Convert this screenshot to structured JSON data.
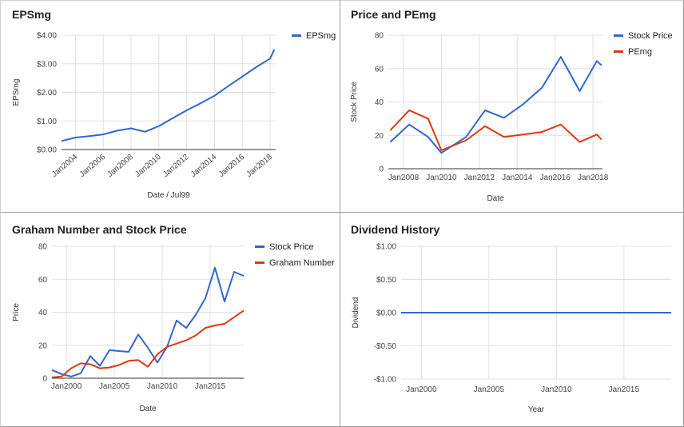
{
  "colors": {
    "blue": "#3366cc",
    "red": "#dc3912",
    "grid": "#e0e0e0"
  },
  "chart_data": [
    {
      "type": "line",
      "title": "EPSmg",
      "xlabel": "Date / Jul99",
      "ylabel": "EPSmg",
      "xlim": [
        2003.0,
        2018.4
      ],
      "ylim": [
        0,
        4
      ],
      "yticks": [
        0,
        1,
        2,
        3,
        4
      ],
      "ytick_labels": [
        "$0.00",
        "$1.00",
        "$2.00",
        "$3.00",
        "$4.00"
      ],
      "xticks": [
        2004,
        2006,
        2008,
        2010,
        2012,
        2014,
        2016,
        2018
      ],
      "xtick_labels": [
        "Jan2004",
        "Jan2006",
        "Jan2008",
        "Jan2010",
        "Jan2012",
        "Jan2014",
        "Jan2016",
        "Jan2018"
      ],
      "xtick_rotate": true,
      "grid": true,
      "legend_position": "top-right",
      "series": [
        {
          "name": "EPSmg",
          "color": "#3366cc",
          "x": [
            2003.0,
            2004.0,
            2005.0,
            2006.0,
            2007.0,
            2008.0,
            2009.0,
            2010.0,
            2011.0,
            2012.0,
            2013.0,
            2014.0,
            2015.0,
            2016.0,
            2017.0,
            2018.0,
            2018.3
          ],
          "y": [
            0.3,
            0.42,
            0.47,
            0.53,
            0.66,
            0.74,
            0.62,
            0.82,
            1.1,
            1.37,
            1.62,
            1.88,
            2.22,
            2.55,
            2.88,
            3.18,
            3.5
          ]
        }
      ]
    },
    {
      "type": "line",
      "title": "Price and PEmg",
      "xlabel": "Date",
      "ylabel": "Stock Price",
      "xlim": [
        2007.2,
        2018.5
      ],
      "ylim": [
        0,
        80
      ],
      "yticks": [
        0,
        20,
        40,
        60,
        80
      ],
      "ytick_labels": [
        "0",
        "20",
        "40",
        "60",
        "80"
      ],
      "xticks": [
        2008,
        2010,
        2012,
        2014,
        2016,
        2018
      ],
      "xtick_labels": [
        "Jan2008",
        "Jan2010",
        "Jan2012",
        "Jan2014",
        "Jan2016",
        "Jan2018"
      ],
      "xtick_rotate": false,
      "grid": true,
      "legend_position": "top-right",
      "series": [
        {
          "name": "Stock Price",
          "color": "#3366cc",
          "x": [
            2007.3,
            2008.3,
            2009.3,
            2010.0,
            2011.3,
            2012.3,
            2013.3,
            2014.3,
            2015.3,
            2016.3,
            2017.3,
            2018.2,
            2018.45
          ],
          "y": [
            16,
            26.5,
            19,
            9.5,
            19,
            35,
            30.5,
            38.5,
            48.5,
            67,
            46.5,
            64.5,
            62
          ]
        },
        {
          "name": "PEmg",
          "color": "#dc3912",
          "x": [
            2007.3,
            2008.3,
            2009.3,
            2010.0,
            2011.3,
            2012.3,
            2013.3,
            2014.3,
            2015.3,
            2016.3,
            2017.3,
            2018.2,
            2018.45
          ],
          "y": [
            23,
            35,
            30,
            11,
            17,
            25.5,
            19,
            20.5,
            22,
            26.5,
            16,
            20.5,
            17.5
          ]
        }
      ]
    },
    {
      "type": "line",
      "title": "Graham Number and Stock Price",
      "xlabel": "Date",
      "ylabel": "Price",
      "xlim": [
        1998.5,
        2018.5
      ],
      "ylim": [
        0,
        80
      ],
      "yticks": [
        0,
        20,
        40,
        60,
        80
      ],
      "ytick_labels": [
        "0",
        "20",
        "40",
        "60",
        "80"
      ],
      "xticks": [
        2000,
        2005,
        2010,
        2015
      ],
      "xtick_labels": [
        "Jan2000",
        "Jan2005",
        "Jan2010",
        "Jan2015"
      ],
      "xtick_rotate": false,
      "grid": true,
      "legend_position": "top-right",
      "series": [
        {
          "name": "Stock Price",
          "color": "#3366cc",
          "x": [
            1998.5,
            1999.5,
            2000.5,
            2001.5,
            2002.5,
            2003.5,
            2004.5,
            2005.5,
            2006.5,
            2007.5,
            2008.5,
            2009.5,
            2010.5,
            2011.5,
            2012.5,
            2013.5,
            2014.5,
            2015.5,
            2016.5,
            2017.5,
            2018.5
          ],
          "y": [
            5,
            2.5,
            1,
            3,
            13.5,
            7.5,
            17,
            16.5,
            16,
            26.5,
            18.5,
            9.5,
            19,
            35,
            30.5,
            38.5,
            48.5,
            67,
            46.5,
            64.5,
            62
          ]
        },
        {
          "name": "Graham Number",
          "color": "#dc3912",
          "x": [
            1998.5,
            1999.5,
            2000.5,
            2001.5,
            2002.5,
            2003.5,
            2004.5,
            2005.5,
            2006.5,
            2007.5,
            2008.5,
            2009.5,
            2010.5,
            2011.5,
            2012.5,
            2013.5,
            2014.5,
            2015.5,
            2016.5,
            2017.5,
            2018.5
          ],
          "y": [
            0.5,
            1,
            6,
            9,
            8.5,
            6,
            6.5,
            8,
            10.5,
            11,
            7,
            14.5,
            19,
            21,
            23,
            26,
            30.5,
            32,
            33,
            37,
            41
          ]
        }
      ]
    },
    {
      "type": "line",
      "title": "Dividend History",
      "xlabel": "Year",
      "ylabel": "Dividend",
      "xlim": [
        1998.5,
        2018.5
      ],
      "ylim": [
        -1,
        1
      ],
      "yticks": [
        -1,
        -0.5,
        0,
        0.5,
        1
      ],
      "ytick_labels": [
        "-$1.00",
        "-$0.50",
        "$0.00",
        "$0.50",
        "$1.00"
      ],
      "xticks": [
        2000,
        2005,
        2010,
        2015
      ],
      "xtick_labels": [
        "Jan2000",
        "Jan2005",
        "Jan2010",
        "Jan2015"
      ],
      "xtick_rotate": false,
      "grid": true,
      "legend_position": "none",
      "series": [
        {
          "name": "",
          "color": "#3366cc",
          "x": [
            1998.5,
            2018.5
          ],
          "y": [
            0,
            0
          ]
        }
      ]
    }
  ]
}
